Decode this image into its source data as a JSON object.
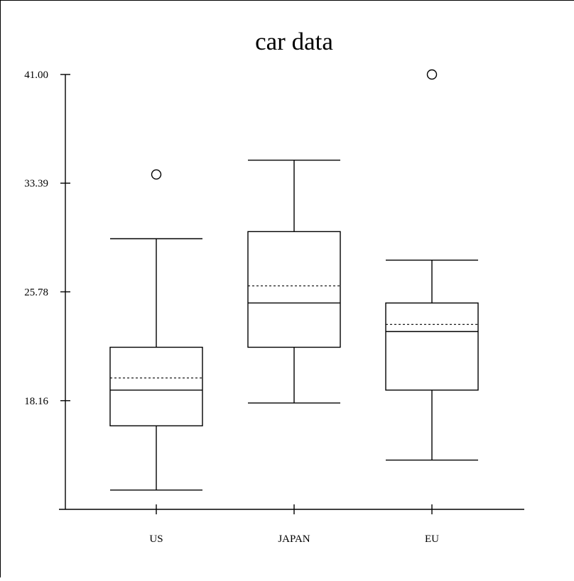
{
  "chart_data": {
    "type": "box",
    "title": "car data",
    "xlabel": "",
    "ylabel": "",
    "ylim": [
      10.55,
      41.0
    ],
    "yticks": [
      {
        "value": 41.0,
        "label": "41.00"
      },
      {
        "value": 33.39,
        "label": "33.39"
      },
      {
        "value": 25.78,
        "label": "25.78"
      },
      {
        "value": 18.16,
        "label": "18.16"
      }
    ],
    "categories": [
      "US",
      "JAPAN",
      "EU"
    ],
    "boxes": [
      {
        "category": "US",
        "whisker_low": 11.9,
        "q1": 16.4,
        "median": 18.9,
        "mean": 19.75,
        "q3": 21.9,
        "whisker_high": 29.5,
        "outliers": [
          34.0
        ]
      },
      {
        "category": "JAPAN",
        "whisker_low": 18.0,
        "q1": 21.9,
        "median": 25.0,
        "mean": 26.2,
        "q3": 30.0,
        "whisker_high": 35.0
      },
      {
        "category": "EU",
        "whisker_low": 14.0,
        "q1": 18.9,
        "median": 23.0,
        "mean": 23.5,
        "q3": 25.0,
        "whisker_high": 28.0,
        "outliers": [
          41.0
        ]
      }
    ],
    "colors": {
      "stroke": "#000000",
      "background": "#ffffff"
    },
    "grid": false,
    "legend": "none"
  }
}
